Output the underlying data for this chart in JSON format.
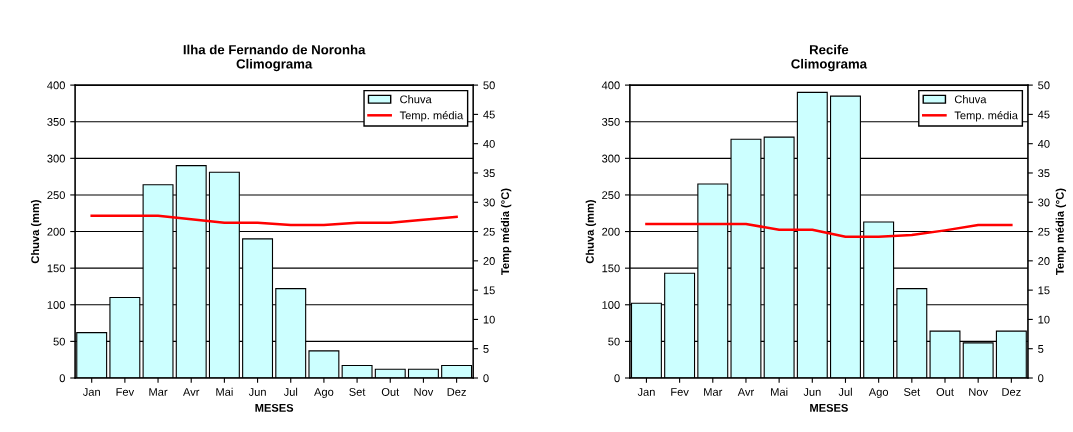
{
  "chart_data": [
    {
      "type": "bar",
      "title": "Ilha de Fernando de Noronha\nClimograma",
      "xlabel": "MESES",
      "ylabel": "Chuva (mm)",
      "y2label": "Temp média (°C)",
      "categories": [
        "Jan",
        "Fev",
        "Mar",
        "Avr",
        "Mai",
        "Jun",
        "Jul",
        "Ago",
        "Set",
        "Out",
        "Nov",
        "Dez"
      ],
      "series": [
        {
          "name": "Chuva",
          "color": "#ccffff",
          "values": [
            62,
            110,
            264,
            290,
            281,
            190,
            122,
            37,
            17,
            12,
            12,
            17
          ]
        },
        {
          "name": "Temp. média",
          "type": "line",
          "axis": "y2",
          "color": "#ff0000",
          "values": [
            27.7,
            27.7,
            27.7,
            27.1,
            26.5,
            26.5,
            26.1,
            26.1,
            26.5,
            26.5,
            27.0,
            27.5
          ]
        }
      ],
      "ylim": [
        0,
        400
      ],
      "yticks": [
        0,
        50,
        100,
        150,
        200,
        250,
        300,
        350,
        400
      ],
      "y2lim": [
        0,
        50
      ],
      "y2ticks": [
        0,
        5,
        10,
        15,
        20,
        25,
        30,
        35,
        40,
        45,
        50
      ],
      "grid": "y",
      "legend": "top right"
    },
    {
      "type": "bar",
      "title": "Recife\nClimograma",
      "xlabel": "MESES",
      "ylabel": "Chuva (mm)",
      "y2label": "Temp média (°C)",
      "categories": [
        "Jan",
        "Fev",
        "Mar",
        "Avr",
        "Mai",
        "Jun",
        "Jul",
        "Ago",
        "Set",
        "Out",
        "Nov",
        "Dez"
      ],
      "series": [
        {
          "name": "Chuva",
          "color": "#ccffff",
          "values": [
            102,
            143,
            265,
            326,
            329,
            390,
            385,
            213,
            122,
            64,
            48,
            64
          ]
        },
        {
          "name": "Temp. média",
          "type": "line",
          "axis": "y2",
          "color": "#ff0000",
          "values": [
            26.3,
            26.3,
            26.3,
            26.3,
            25.3,
            25.3,
            24.1,
            24.1,
            24.4,
            25.2,
            26.1,
            26.1
          ]
        }
      ],
      "ylim": [
        0,
        400
      ],
      "yticks": [
        0,
        50,
        100,
        150,
        200,
        250,
        300,
        350,
        400
      ],
      "y2lim": [
        0,
        50
      ],
      "y2ticks": [
        0,
        5,
        10,
        15,
        20,
        25,
        30,
        35,
        40,
        45,
        50
      ],
      "grid": "y",
      "legend": "top right"
    }
  ]
}
